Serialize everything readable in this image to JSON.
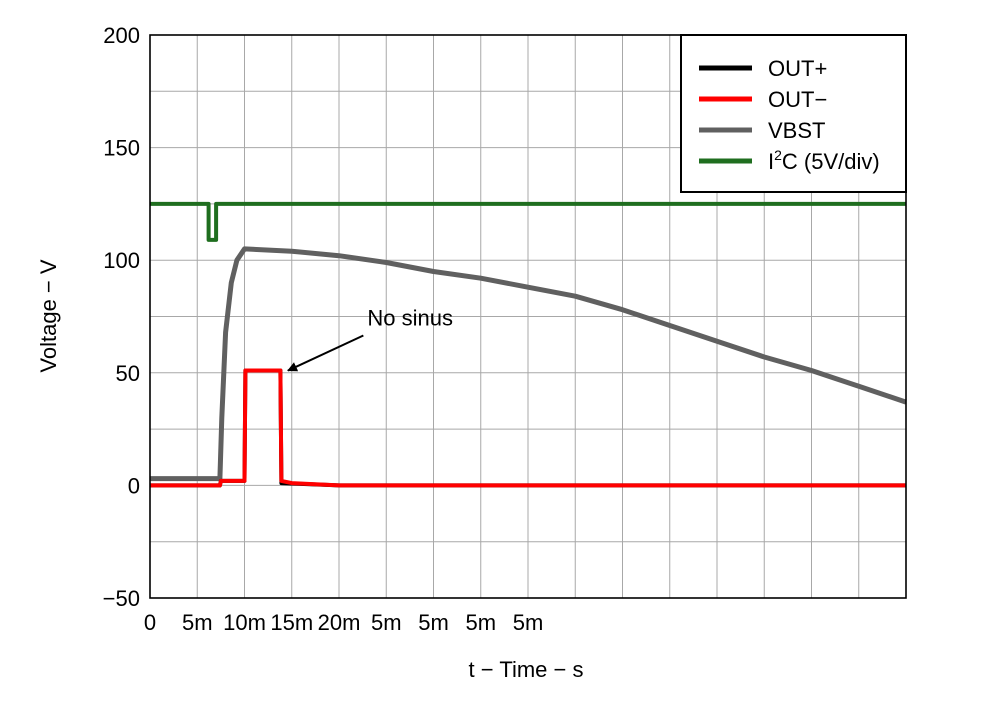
{
  "chart_data": {
    "type": "line",
    "title": "",
    "xlabel": "t − Time − s",
    "ylabel": "Voltage  − V",
    "xlim": [
      0,
      40
    ],
    "ylim": [
      -50,
      200
    ],
    "grid": true,
    "legend_position": "top-right",
    "x_ticks": [
      0,
      2.5,
      5,
      7.5,
      10,
      12.5,
      15,
      17.5,
      20
    ],
    "x_tick_labels": [
      "0",
      "5m",
      "10m",
      "15m",
      "20m",
      "5m",
      "5m",
      "5m",
      "5m"
    ],
    "y_ticks": [
      -50,
      0,
      50,
      100,
      150,
      200
    ],
    "y_tick_labels": [
      "−50",
      "0",
      "50",
      "100",
      "150",
      "200"
    ],
    "series": [
      {
        "name": "OUT+",
        "color": "#000000",
        "x": [
          0,
          3.7,
          3.75,
          5,
          5.05,
          6.9,
          6.95,
          10,
          40
        ],
        "y": [
          0,
          0,
          2,
          2,
          51,
          51,
          1,
          0,
          0
        ]
      },
      {
        "name": "OUT−",
        "color": "#ff0000",
        "x": [
          0,
          3.7,
          3.75,
          5,
          5.05,
          6.9,
          6.95,
          7.5,
          10,
          40
        ],
        "y": [
          0,
          0,
          2,
          2,
          51,
          51,
          2,
          1,
          0,
          0
        ]
      },
      {
        "name": "VBST",
        "color": "#606060",
        "x": [
          0,
          3.7,
          3.8,
          4.0,
          4.3,
          4.6,
          5.0,
          7.5,
          10,
          12.5,
          15,
          17.5,
          20,
          22.5,
          25,
          27.5,
          30,
          32.5,
          35,
          37.5,
          40
        ],
        "y": [
          3,
          3,
          30,
          68,
          90,
          100,
          105,
          104,
          102,
          99,
          95,
          92,
          88,
          84,
          78,
          71,
          64,
          57,
          51,
          44,
          37
        ]
      },
      {
        "name": "I²C (5V/div)",
        "legend_parts": [
          "I",
          "2",
          "C (5V/div)"
        ],
        "color": "#1f6e1f",
        "x": [
          0,
          3.1,
          3.1,
          3.5,
          3.5,
          40
        ],
        "y": [
          125,
          125,
          109,
          109,
          125,
          125
        ]
      }
    ],
    "annotations": [
      {
        "text": "No sinus",
        "x": 11.5,
        "y": 71,
        "arrow_to": [
          7.3,
          51
        ]
      }
    ]
  }
}
